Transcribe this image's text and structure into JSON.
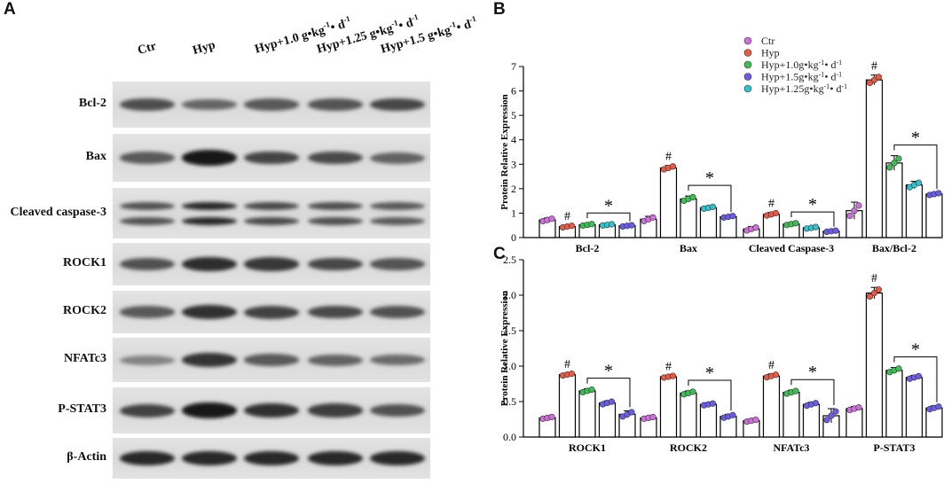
{
  "panels": {
    "a": "A",
    "b": "B",
    "c": "C"
  },
  "lanes": [
    {
      "main": "Ctr",
      "dose": "",
      "unit": false
    },
    {
      "main": "Hyp",
      "dose": "",
      "unit": false
    },
    {
      "main": "Hyp+",
      "dose": "1.0",
      "unit": true
    },
    {
      "main": "Hyp+",
      "dose": "1.25",
      "unit": true
    },
    {
      "main": "Hyp+",
      "dose": "1.5",
      "unit": true
    }
  ],
  "unit_text": {
    "g": " g•kg",
    "kg_exp": "-1",
    "d": "• d",
    "d_exp": "-1"
  },
  "blots": [
    {
      "label": "Bcl-2",
      "intensity": [
        0.62,
        0.48,
        0.55,
        0.58,
        0.66
      ],
      "double": false
    },
    {
      "label": "Bax",
      "intensity": [
        0.55,
        0.95,
        0.68,
        0.65,
        0.5
      ],
      "double": false
    },
    {
      "label": "Cleaved caspase-3",
      "intensity": [
        0.6,
        0.85,
        0.65,
        0.62,
        0.55
      ],
      "double": true
    },
    {
      "label": "ROCK1",
      "intensity": [
        0.6,
        0.82,
        0.75,
        0.66,
        0.58
      ],
      "double": false
    },
    {
      "label": "ROCK2",
      "intensity": [
        0.55,
        0.8,
        0.7,
        0.65,
        0.6
      ],
      "double": false
    },
    {
      "label": "NFATc3",
      "intensity": [
        0.3,
        0.78,
        0.55,
        0.5,
        0.45
      ],
      "double": false
    },
    {
      "label": "P-STAT3",
      "intensity": [
        0.7,
        0.95,
        0.8,
        0.72,
        0.6
      ],
      "double": false
    },
    {
      "label": "β-Actin",
      "intensity": [
        0.85,
        0.85,
        0.85,
        0.85,
        0.85
      ],
      "double": false
    }
  ],
  "legend": [
    {
      "name": "Ctr",
      "color": "#cf6fdc"
    },
    {
      "name": "Hyp",
      "color": "#e85a45"
    },
    {
      "name": "Hyp+1.0g•kg",
      "exp1": "-1",
      "mid": "• d",
      "exp2": "-1",
      "color": "#3cbf55"
    },
    {
      "name": "Hyp+1.5g•kg",
      "exp1": "-1",
      "mid": "• d",
      "exp2": "-1",
      "color": "#6a5be8"
    },
    {
      "name": "Hyp+1.25g•kg",
      "exp1": "-1",
      "mid": "• d",
      "exp2": "-1",
      "color": "#2ec4cf"
    }
  ],
  "chart_data": [
    {
      "type": "bar",
      "panel": "B",
      "ylabel": "Protein Relative Expression",
      "ylim": [
        0,
        7
      ],
      "yticks": [
        "0",
        "1",
        "2",
        "3",
        "4",
        "5",
        "6",
        "7"
      ],
      "categories": [
        "Bcl-2",
        "Bax",
        "Cleaved Caspase-3",
        "Bax/Bcl-2"
      ],
      "bar_color_order": [
        "#cf6fdc",
        "#e85a45",
        "#3cbf55",
        "#2ec4cf",
        "#6a5be8"
      ],
      "values": [
        [
          0.72,
          0.45,
          0.52,
          0.52,
          0.48
        ],
        [
          0.75,
          2.85,
          1.58,
          1.22,
          0.85
        ],
        [
          0.35,
          0.95,
          0.55,
          0.4,
          0.26
        ],
        [
          1.1,
          6.45,
          3.05,
          2.15,
          1.78
        ]
      ],
      "errors": [
        [
          0.08,
          0.05,
          0.05,
          0.04,
          0.04
        ],
        [
          0.12,
          0.1,
          0.12,
          0.06,
          0.05
        ],
        [
          0.1,
          0.08,
          0.06,
          0.05,
          0.04
        ],
        [
          0.35,
          0.2,
          0.3,
          0.15,
          0.06
        ]
      ],
      "hash_mark": "#",
      "star_mark": "*"
    },
    {
      "type": "bar",
      "panel": "C",
      "ylabel": "Protein Relative Expression",
      "ylim": [
        0,
        2.5
      ],
      "yticks": [
        "0.0",
        "0.5",
        "1.0",
        "1.5",
        "2.0",
        "2.5"
      ],
      "categories": [
        "ROCK1",
        "ROCK2",
        "NFATc3",
        "P-STAT3"
      ],
      "bar_color_order": [
        "#6a5be8",
        "#e85a45",
        "#3cbf55",
        "#6a5be8",
        "#6a5be8"
      ],
      "values": [
        [
          0.27,
          0.88,
          0.65,
          0.48,
          0.32
        ],
        [
          0.27,
          0.85,
          0.62,
          0.46,
          0.29
        ],
        [
          0.23,
          0.86,
          0.63,
          0.46,
          0.3
        ],
        [
          0.4,
          2.03,
          0.94,
          0.84,
          0.41
        ]
      ],
      "errors": [
        [
          0.02,
          0.02,
          0.03,
          0.03,
          0.05
        ],
        [
          0.02,
          0.02,
          0.03,
          0.02,
          0.03
        ],
        [
          0.02,
          0.03,
          0.03,
          0.03,
          0.1
        ],
        [
          0.03,
          0.08,
          0.04,
          0.03,
          0.03
        ]
      ],
      "hash_mark": "#",
      "star_mark": "*"
    }
  ]
}
